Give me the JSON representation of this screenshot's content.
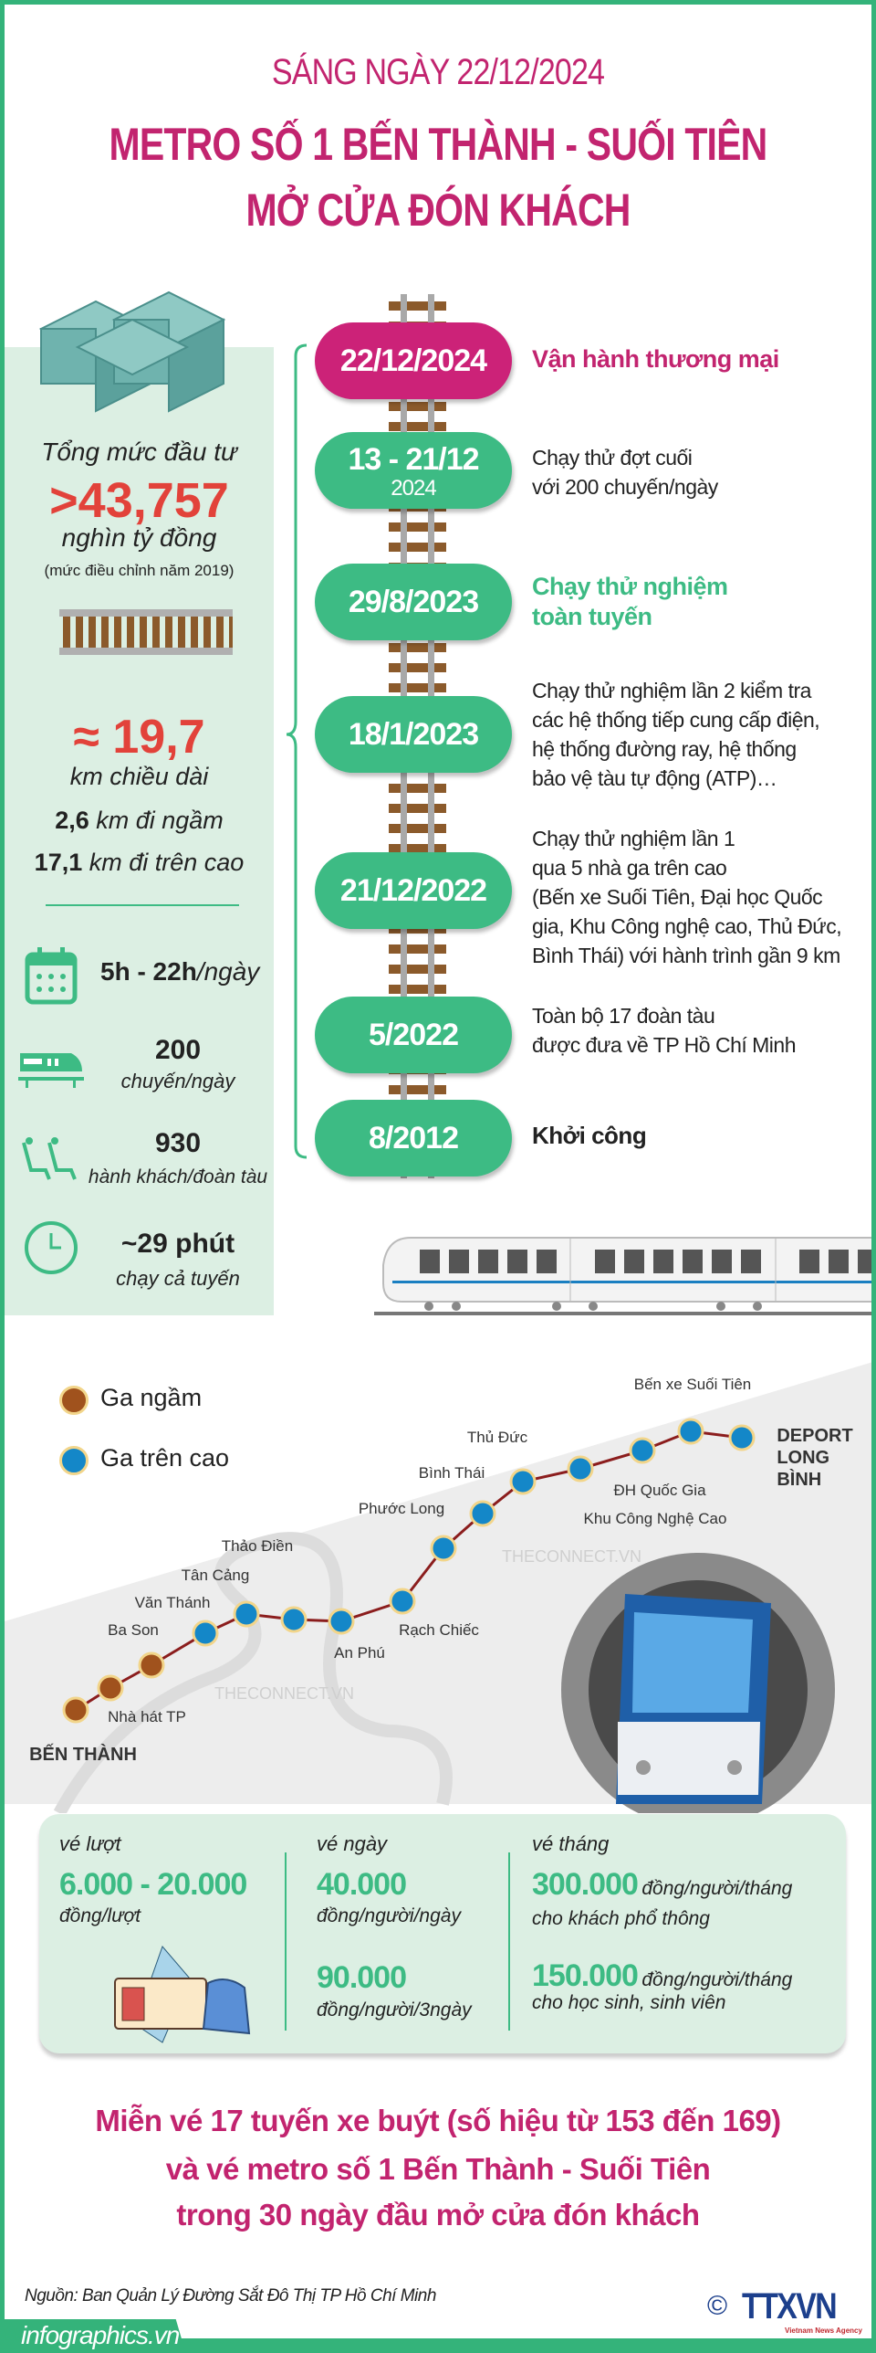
{
  "header": {
    "subtitle": "SÁNG NGÀY 22/12/2024",
    "title_line1": "METRO SỐ 1 BẾN THÀNH - SUỐI TIÊN",
    "title_line2": "MỞ CỬA ĐÓN KHÁCH"
  },
  "investment": {
    "label": "Tổng mức đầu tư",
    "value": ">43,757",
    "unit": "nghìn tỷ đồng",
    "note": "(mức điều chỉnh năm 2019)"
  },
  "length": {
    "value": "≈ 19,7",
    "unit": "km chiều dài",
    "underground_value": "2,6",
    "underground_label": "km đi ngầm",
    "elevated_value": "17,1",
    "elevated_label": "km đi trên cao"
  },
  "stats": {
    "hours_value": "5h - 22h",
    "hours_unit": "/ngày",
    "trips_value": "200",
    "trips_unit": "chuyến/ngày",
    "capacity_value": "930",
    "capacity_unit": "hành khách/đoàn tàu",
    "duration_value": "~29 phút",
    "duration_unit": "chạy cả tuyến"
  },
  "timeline": [
    {
      "date": "22/12/2024",
      "year": "",
      "text": "Vận hành thương mại"
    },
    {
      "date": "13 - 21/12",
      "year": "2024",
      "text": "Chạy thử đợt cuối\nvới 200 chuyến/ngày"
    },
    {
      "date": "29/8/2023",
      "year": "",
      "text": "Chạy thử nghiệm\ntoàn tuyến"
    },
    {
      "date": "18/1/2023",
      "year": "",
      "text": "Chạy thử nghiệm lần 2 kiểm tra\ncác hệ thống tiếp cung cấp điện,\nhệ thống đường ray, hệ thống\nbảo vệ tàu tự động (ATP)…"
    },
    {
      "date": "21/12/2022",
      "year": "",
      "text": "Chạy thử nghiệm lần 1\nqua 5 nhà ga trên cao\n(Bến xe Suối Tiên, Đại học Quốc\ngia, Khu Công nghệ cao, Thủ Đức,\nBình Thái) với hành trình gần 9 km"
    },
    {
      "date": "5/2022",
      "year": "",
      "text": "Toàn bộ 17 đoàn tàu\nđược đưa về TP Hồ Chí Minh"
    },
    {
      "date": "8/2012",
      "year": "",
      "text": "Khởi công"
    }
  ],
  "map": {
    "legend": {
      "underground": "Ga ngầm",
      "elevated": "Ga trên cao"
    },
    "stations": [
      {
        "name": "BẾN THÀNH",
        "type": "underground"
      },
      {
        "name": "Nhà hát TP",
        "type": "underground"
      },
      {
        "name": "Ba Son",
        "type": "underground"
      },
      {
        "name": "Văn Thánh",
        "type": "elevated"
      },
      {
        "name": "Tân Cảng",
        "type": "elevated"
      },
      {
        "name": "Thảo Điền",
        "type": "elevated"
      },
      {
        "name": "An Phú",
        "type": "elevated"
      },
      {
        "name": "Rạch Chiếc",
        "type": "elevated"
      },
      {
        "name": "Phước Long",
        "type": "elevated"
      },
      {
        "name": "Bình Thái",
        "type": "elevated"
      },
      {
        "name": "Thủ Đức",
        "type": "elevated"
      },
      {
        "name": "Khu Công Nghệ Cao",
        "type": "elevated"
      },
      {
        "name": "ĐH Quốc Gia",
        "type": "elevated"
      },
      {
        "name": "Bến xe Suối Tiên",
        "type": "elevated"
      },
      {
        "name": "DEPORT\nLONG BÌNH",
        "type": "elevated"
      }
    ],
    "watermark": "THECONNECT.VN",
    "colors": {
      "underground": "#a0521d",
      "elevated": "#1487c8",
      "line": "#8b1d1d"
    }
  },
  "tickets": {
    "single": {
      "heading": "vé lượt",
      "price": "6.000 - 20.000",
      "unit": "đồng/lượt"
    },
    "daily": {
      "heading": "vé ngày",
      "price1": "40.000",
      "unit1": "đồng/người/ngày",
      "price2": "90.000",
      "unit2": "đồng/người/3ngày"
    },
    "monthly": {
      "heading": "vé tháng",
      "price1": "300.000",
      "unit1": "đồng/người/tháng",
      "note1": "cho khách phổ thông",
      "price2": "150.000",
      "unit2": "đồng/người/tháng",
      "note2": "cho học sinh, sinh viên"
    }
  },
  "promo": {
    "line1": "Miễn vé 17 tuyến xe buýt (số hiệu từ 153 đến 169)",
    "line2": "và vé metro số 1 Bến Thành - Suối Tiên",
    "line3": "trong 30 ngày đầu mở cửa đón khách"
  },
  "source": "Nguồn: Ban Quản Lý Đường Sắt Đô Thị TP Hồ Chí Minh",
  "logo": {
    "copyright": "©",
    "name": "TTXVN",
    "tagline": "Vietnam News Agency"
  },
  "footer": {
    "site": "infographics.vn"
  },
  "colors": {
    "magenta": "#c2246f",
    "green": "#3dbb84",
    "panel": "#dcefe3",
    "red": "#e2423a"
  }
}
